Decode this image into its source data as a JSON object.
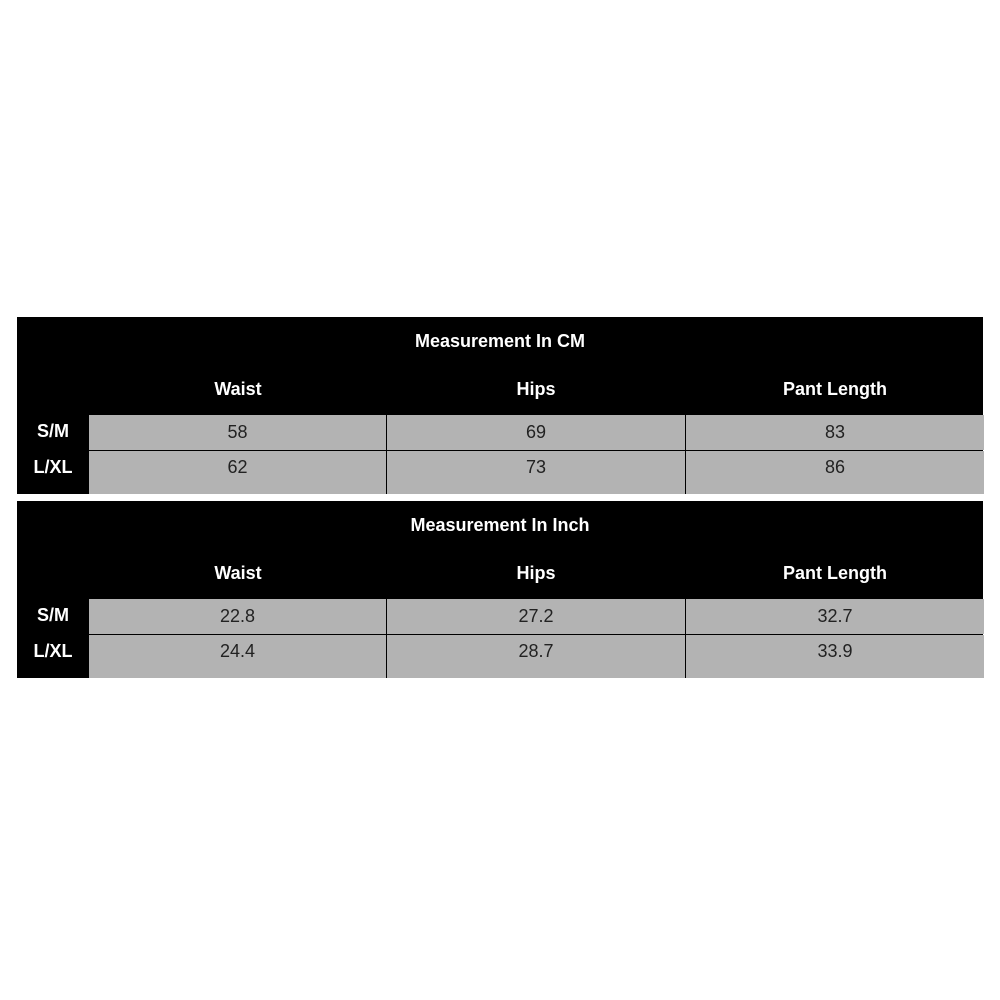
{
  "tables": [
    {
      "title": "Measurement In CM",
      "columns": [
        "Waist",
        "Hips",
        "Pant Length"
      ],
      "rows": [
        {
          "size": "S/M",
          "values": [
            "58",
            "69",
            "83"
          ]
        },
        {
          "size": "L/XL",
          "values": [
            "62",
            "73",
            "86"
          ]
        }
      ]
    },
    {
      "title": "Measurement In Inch",
      "columns": [
        "Waist",
        "Hips",
        "Pant Length"
      ],
      "rows": [
        {
          "size": "S/M",
          "values": [
            "22.8",
            "27.2",
            "32.7"
          ]
        },
        {
          "size": "L/XL",
          "values": [
            "24.4",
            "28.7",
            "33.9"
          ]
        }
      ]
    }
  ],
  "colors": {
    "header_bg": "#000000",
    "cell_bg": "#b3b3b3"
  }
}
